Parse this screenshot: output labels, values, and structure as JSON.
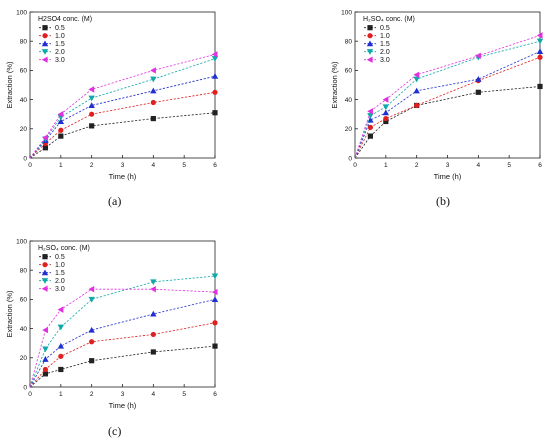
{
  "figure": {
    "panels": [
      {
        "label": "(a)",
        "legend_title": "H2SO4 conc. (M)",
        "chart_data": {
          "type": "line",
          "xlabel": "Time (h)",
          "ylabel": "Extraction (%)",
          "xlim": [
            0,
            6
          ],
          "ylim": [
            0,
            100
          ],
          "xticks": [
            "0",
            "1",
            "2",
            "3",
            "4",
            "5",
            "6"
          ],
          "yticks": [
            "0",
            "20",
            "40",
            "60",
            "80",
            "100"
          ],
          "grid": false,
          "legend_position": "top-left",
          "x": [
            0,
            0.5,
            1,
            2,
            4,
            6
          ],
          "series": [
            {
              "name": "0.5",
              "values": [
                0,
                7,
                15,
                22,
                27,
                31
              ]
            },
            {
              "name": "1.0",
              "values": [
                0,
                10,
                19,
                30,
                38,
                45
              ]
            },
            {
              "name": "1.5",
              "values": [
                0,
                12,
                25,
                36,
                46,
                56
              ]
            },
            {
              "name": "2.0",
              "values": [
                0,
                13,
                28,
                41,
                54,
                68
              ]
            },
            {
              "name": "3.0",
              "values": [
                0,
                14,
                30,
                47,
                60,
                71
              ]
            }
          ]
        }
      },
      {
        "label": "(b)",
        "legend_title": "H₂SO₄ conc. (M)",
        "chart_data": {
          "type": "line",
          "xlabel": "Time (h)",
          "ylabel": "Extraction (%)",
          "xlim": [
            0,
            6
          ],
          "ylim": [
            0,
            100
          ],
          "xticks": [
            "0",
            "1",
            "2",
            "3",
            "4",
            "5",
            "6"
          ],
          "yticks": [
            "0",
            "20",
            "40",
            "60",
            "80",
            "100"
          ],
          "grid": false,
          "legend_position": "top-left",
          "x": [
            0,
            0.5,
            1,
            2,
            4,
            6
          ],
          "series": [
            {
              "name": "0.5",
              "values": [
                0,
                15,
                25,
                36,
                45,
                49
              ]
            },
            {
              "name": "1.0",
              "values": [
                0,
                21,
                27,
                36,
                53,
                69
              ]
            },
            {
              "name": "1.5",
              "values": [
                0,
                26,
                31,
                46,
                54,
                73
              ]
            },
            {
              "name": "2.0",
              "values": [
                0,
                29,
                35,
                54,
                69,
                80
              ]
            },
            {
              "name": "3.0",
              "values": [
                0,
                32,
                40,
                57,
                70,
                84
              ]
            }
          ]
        }
      },
      {
        "label": "(c)",
        "legend_title": "H₂SO₄ conc. (M)",
        "chart_data": {
          "type": "line",
          "xlabel": "Time (h)",
          "ylabel": "Extraction (%)",
          "xlim": [
            0,
            6
          ],
          "ylim": [
            0,
            100
          ],
          "xticks": [
            "0",
            "1",
            "2",
            "3",
            "4",
            "5",
            "6"
          ],
          "yticks": [
            "0",
            "20",
            "40",
            "60",
            "80",
            "100"
          ],
          "grid": false,
          "legend_position": "top-left",
          "x": [
            0,
            0.5,
            1,
            2,
            4,
            6
          ],
          "series": [
            {
              "name": "0.5",
              "values": [
                0,
                9,
                12,
                18,
                24,
                28
              ]
            },
            {
              "name": "1.0",
              "values": [
                0,
                12,
                21,
                31,
                36,
                44
              ]
            },
            {
              "name": "1.5",
              "values": [
                0,
                19,
                28,
                39,
                50,
                60
              ]
            },
            {
              "name": "2.0",
              "values": [
                0,
                26,
                41,
                60,
                72,
                76
              ]
            },
            {
              "name": "3.0",
              "values": [
                0,
                39,
                53,
                67,
                67,
                65
              ]
            }
          ]
        }
      }
    ],
    "series_styles": [
      {
        "color": "#222222",
        "marker": "square"
      },
      {
        "color": "#e02020",
        "marker": "circle"
      },
      {
        "color": "#2030d0",
        "marker": "triangle-up"
      },
      {
        "color": "#10a8a8",
        "marker": "triangle-down"
      },
      {
        "color": "#e030e0",
        "marker": "triangle-left"
      }
    ]
  }
}
